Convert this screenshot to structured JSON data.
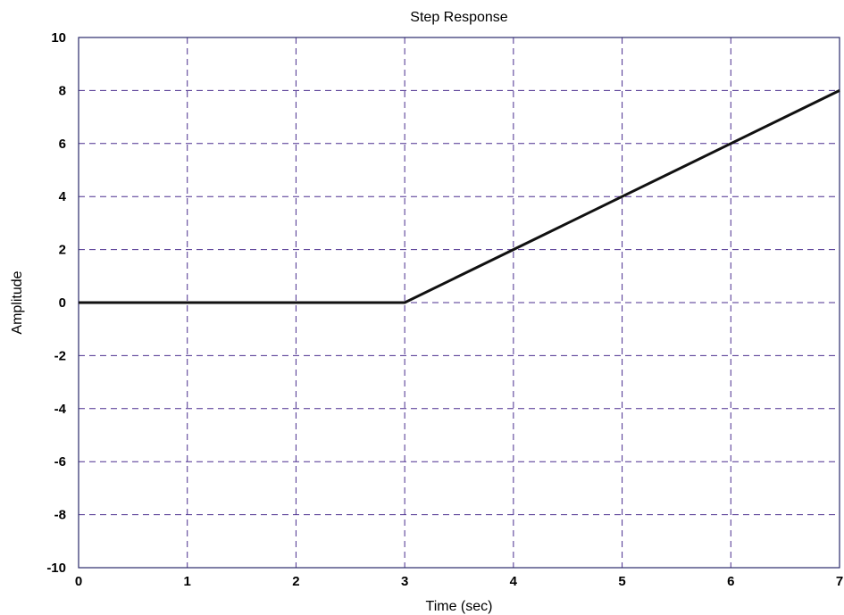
{
  "chart_data": {
    "type": "line",
    "title": "Step Response",
    "xlabel": "Time (sec)",
    "ylabel": "Amplitude",
    "xlim": [
      0,
      7
    ],
    "ylim": [
      -10,
      10
    ],
    "xticks": [
      0,
      1,
      2,
      3,
      4,
      5,
      6,
      7
    ],
    "xtick_labels": [
      "0",
      "1",
      "2",
      "3",
      "4",
      "5",
      "6",
      "7"
    ],
    "yticks": [
      -10,
      -8,
      -6,
      -4,
      -2,
      0,
      2,
      4,
      6,
      8,
      10
    ],
    "ytick_labels": [
      "-10",
      "-8",
      "-6",
      "-4",
      "-2",
      "0",
      "2",
      "4",
      "6",
      "8",
      "10"
    ],
    "grid": true,
    "series": [
      {
        "x": [
          0,
          1,
          2,
          3,
          4,
          5,
          6,
          7
        ],
        "y": [
          0,
          0,
          0,
          0,
          2,
          4,
          6,
          8
        ],
        "color": "#111111"
      }
    ]
  }
}
